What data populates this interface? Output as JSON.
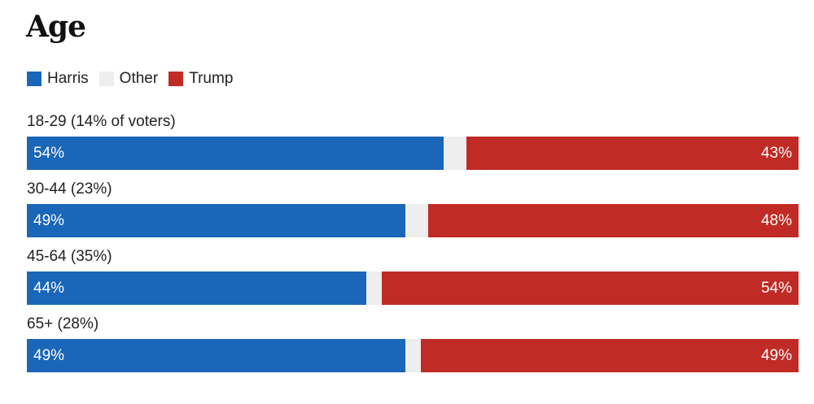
{
  "title": "Age",
  "legend": [
    {
      "name": "Harris",
      "color": "#1a66b8"
    },
    {
      "name": "Other",
      "color": "#eeeeee"
    },
    {
      "name": "Trump",
      "color": "#c02b25"
    }
  ],
  "chart_data": {
    "type": "bar",
    "orientation": "horizontal",
    "stacked": true,
    "title": "Age",
    "categories": [
      "18-29 (14% of voters)",
      "30-44 (23%)",
      "45-64 (35%)",
      "65+ (28%)"
    ],
    "series": [
      {
        "name": "Harris",
        "color": "#1a66b8",
        "values": [
          54,
          49,
          44,
          49
        ],
        "labels": [
          "54%",
          "49%",
          "44%",
          "49%"
        ]
      },
      {
        "name": "Other",
        "color": "#eeeeee",
        "values": [
          3,
          3,
          2,
          2
        ]
      },
      {
        "name": "Trump",
        "color": "#c02b25",
        "values": [
          43,
          48,
          54,
          49
        ],
        "labels": [
          "43%",
          "48%",
          "54%",
          "49%"
        ]
      }
    ],
    "xlim": [
      0,
      100
    ],
    "legend_position": "top-left",
    "grid": false
  }
}
